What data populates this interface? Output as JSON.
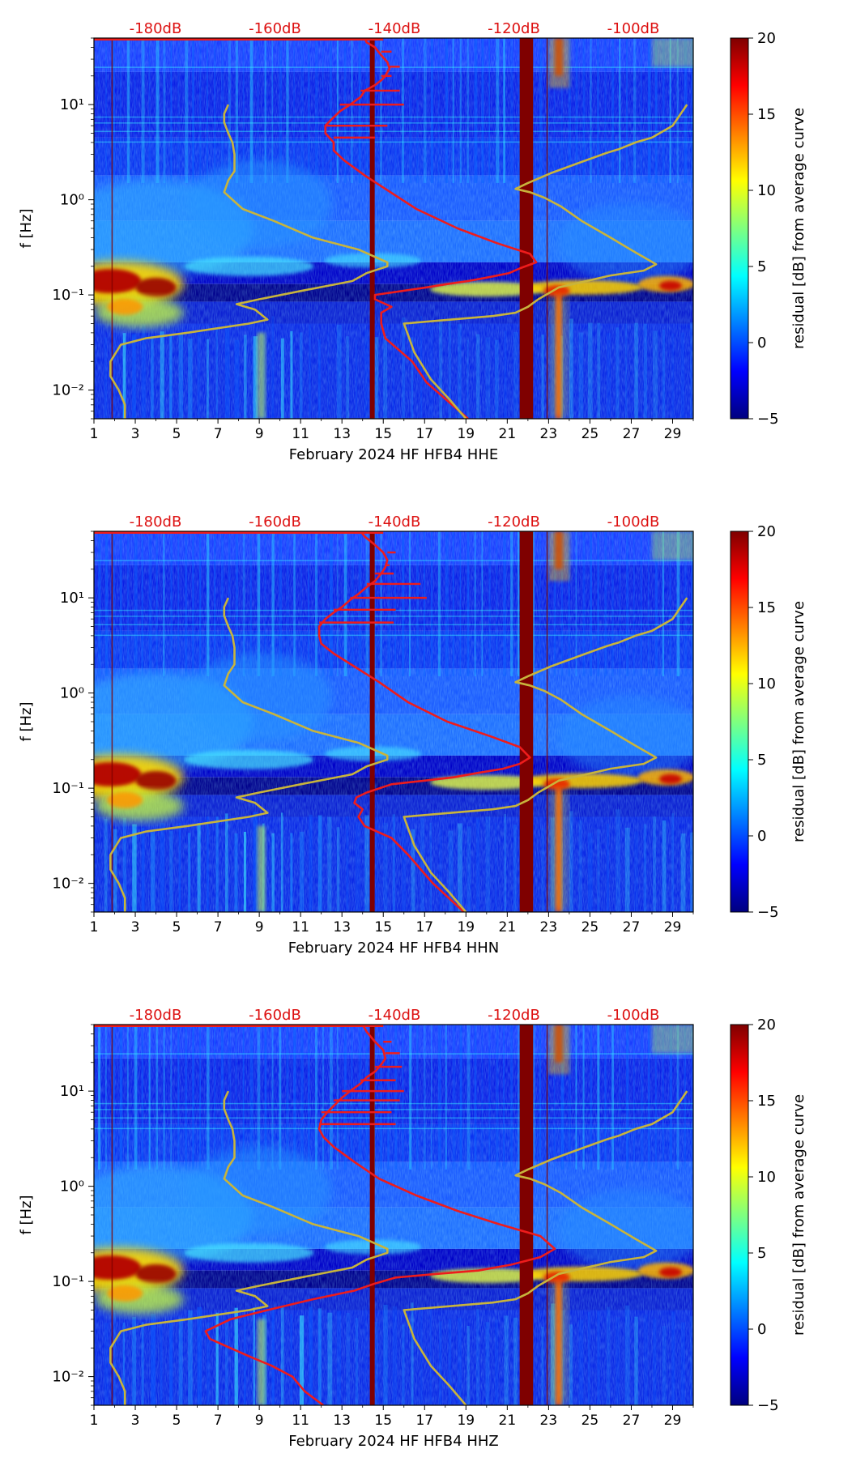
{
  "colorbar": {
    "label": "residual [dB] from average curve",
    "ticks": [
      "20",
      "15",
      "10",
      "5",
      "0",
      "−5"
    ],
    "stops": [
      "#00007f",
      "#0000ff",
      "#007fff",
      "#00ffff",
      "#7fff7f",
      "#ffff00",
      "#ff7f00",
      "#ff0000",
      "#7f0000"
    ],
    "range": [
      -5,
      20
    ]
  },
  "colors": {
    "red_curve": "#ee1c1c",
    "model_curve": "#c8b43c",
    "db_label": "#dd1111",
    "band": "#7f0000"
  },
  "chart_data": [
    {
      "type": "heatmap",
      "xlabel": "February 2024 HF HFB4  HHE",
      "ylabel": "f [Hz]",
      "x_ticks": [
        "1",
        "3",
        "5",
        "7",
        "9",
        "11",
        "13",
        "15",
        "17",
        "19",
        "21",
        "23",
        "25",
        "27",
        "29"
      ],
      "y_ticks": [
        "10⁻²",
        "10⁻¹",
        "10⁰",
        "10¹"
      ],
      "top_ticks": [
        "-180dB",
        "-160dB",
        "-140dB",
        "-120dB",
        "-100dB"
      ],
      "xlim": [
        1,
        30
      ],
      "ylim": [
        0.005,
        50
      ],
      "series": [
        {
          "name": "red",
          "x": [
            19.1,
            17.1,
            16.4,
            15.1,
            14.9,
            14.9,
            15.4,
            14.6,
            14.6,
            15.9,
            17.1,
            18.1,
            19.1,
            20.2,
            21.1,
            21.6,
            22.4,
            22.1,
            20.5,
            18.6,
            16.6,
            15.1,
            14.1,
            13.1,
            12.6,
            12.6,
            12.2,
            12.2,
            12.5,
            12.9,
            13.4,
            13.9,
            14.1,
            14.6,
            14.9,
            15.1,
            15.3,
            15.2,
            14.9,
            14.6,
            14.2,
            14.1
          ],
          "y": [
            0.005,
            0.012,
            0.02,
            0.035,
            0.05,
            0.065,
            0.075,
            0.09,
            0.1,
            0.11,
            0.12,
            0.13,
            0.14,
            0.155,
            0.17,
            0.19,
            0.22,
            0.27,
            0.35,
            0.5,
            0.8,
            1.3,
            1.8,
            2.6,
            3.3,
            4.0,
            5.0,
            6.0,
            7.0,
            8.5,
            10,
            12,
            14,
            16,
            18,
            20,
            24,
            28,
            33,
            40,
            45,
            50
          ]
        },
        {
          "name": "model",
          "x": [
            2.5,
            2.5,
            2.2,
            1.8,
            1.8,
            2.3,
            3.5,
            5.5,
            8.5,
            9.4,
            8.8,
            7.9,
            9.0,
            11,
            13.5,
            14.2,
            15.2,
            15.2,
            13.8,
            11.6,
            9.7,
            8.2,
            7.3,
            7.5,
            7.8,
            7.8,
            7.7,
            7.5,
            7.3,
            7.3,
            7.5
          ],
          "y": [
            0.005,
            0.007,
            0.01,
            0.014,
            0.02,
            0.03,
            0.035,
            0.04,
            0.05,
            0.055,
            0.07,
            0.08,
            0.09,
            0.11,
            0.14,
            0.17,
            0.2,
            0.22,
            0.3,
            0.4,
            0.6,
            0.8,
            1.2,
            1.6,
            2.0,
            3.0,
            4.0,
            5.0,
            6.5,
            8.0,
            10
          ]
        },
        {
          "name": "model",
          "x": [
            19.0,
            18.2,
            17.3,
            16.5,
            16.0,
            20.3,
            21.4,
            22.0,
            22.5,
            23.5,
            26.0,
            27.6,
            28.2,
            27.2,
            26.0,
            24.6,
            23.6,
            22.8,
            22.1,
            21.4,
            22.0,
            23.1,
            24.6,
            25.8,
            26.4,
            27.2,
            28.0,
            29.0,
            29.7
          ],
          "y": [
            0.005,
            0.008,
            0.013,
            0.025,
            0.05,
            0.06,
            0.065,
            0.075,
            0.09,
            0.12,
            0.16,
            0.18,
            0.21,
            0.28,
            0.4,
            0.6,
            0.85,
            1.05,
            1.2,
            1.3,
            1.5,
            1.9,
            2.5,
            3.1,
            3.4,
            4.0,
            4.5,
            6.0,
            10
          ]
        }
      ]
    },
    {
      "type": "heatmap",
      "xlabel": "February 2024 HF HFB4  HHN",
      "ylabel": "f [Hz]",
      "x_ticks": [
        "1",
        "3",
        "5",
        "7",
        "9",
        "11",
        "13",
        "15",
        "17",
        "19",
        "21",
        "23",
        "25",
        "27",
        "29"
      ],
      "y_ticks": [
        "10⁻²",
        "10⁻¹",
        "10⁰",
        "10¹"
      ],
      "top_ticks": [
        "-180dB",
        "-160dB",
        "-140dB",
        "-120dB",
        "-100dB"
      ],
      "xlim": [
        1,
        30
      ],
      "ylim": [
        0.005,
        50
      ],
      "series": [
        {
          "name": "red",
          "x": [
            18.9,
            17.4,
            16.2,
            15.4,
            14.1,
            13.8,
            14.0,
            13.6,
            13.7,
            14.2,
            15.4,
            17.0,
            18.4,
            19.6,
            20.8,
            21.6,
            22.1,
            21.6,
            20.2,
            18.1,
            16.2,
            14.8,
            13.6,
            12.6,
            12.0,
            11.9,
            11.9,
            12.2,
            12.6,
            13.0,
            13.4,
            13.8,
            14.2,
            14.6,
            14.9,
            15.1,
            15.2,
            15.0,
            14.6,
            14.1,
            13.9
          ],
          "y": [
            0.005,
            0.01,
            0.02,
            0.03,
            0.04,
            0.05,
            0.06,
            0.07,
            0.08,
            0.09,
            0.11,
            0.12,
            0.13,
            0.145,
            0.16,
            0.18,
            0.21,
            0.27,
            0.35,
            0.5,
            0.8,
            1.3,
            1.9,
            2.6,
            3.3,
            4.0,
            5.0,
            6.0,
            7.0,
            8.0,
            9.5,
            11,
            13,
            15,
            18,
            21,
            25,
            30,
            36,
            44,
            50
          ]
        },
        {
          "name": "model",
          "x": [
            2.5,
            2.5,
            2.2,
            1.8,
            1.8,
            2.3,
            3.5,
            5.5,
            8.5,
            9.4,
            8.8,
            7.9,
            9.0,
            11,
            13.5,
            14.2,
            15.2,
            15.2,
            13.8,
            11.6,
            9.7,
            8.2,
            7.3,
            7.5,
            7.8,
            7.8,
            7.7,
            7.5,
            7.3,
            7.3,
            7.5
          ],
          "y": [
            0.005,
            0.007,
            0.01,
            0.014,
            0.02,
            0.03,
            0.035,
            0.04,
            0.05,
            0.055,
            0.07,
            0.08,
            0.09,
            0.11,
            0.14,
            0.17,
            0.2,
            0.22,
            0.3,
            0.4,
            0.6,
            0.8,
            1.2,
            1.6,
            2.0,
            3.0,
            4.0,
            5.0,
            6.5,
            8.0,
            10
          ]
        },
        {
          "name": "model",
          "x": [
            19.0,
            18.2,
            17.3,
            16.5,
            16.0,
            20.3,
            21.4,
            22.0,
            22.5,
            23.5,
            26.0,
            27.6,
            28.2,
            27.2,
            26.0,
            24.6,
            23.6,
            22.8,
            22.1,
            21.4,
            22.0,
            23.1,
            24.6,
            25.8,
            26.4,
            27.2,
            28.0,
            29.0,
            29.7
          ],
          "y": [
            0.005,
            0.008,
            0.013,
            0.025,
            0.05,
            0.06,
            0.065,
            0.075,
            0.09,
            0.12,
            0.16,
            0.18,
            0.21,
            0.28,
            0.4,
            0.6,
            0.85,
            1.05,
            1.2,
            1.3,
            1.5,
            1.9,
            2.5,
            3.1,
            3.4,
            4.0,
            4.5,
            6.0,
            10
          ]
        }
      ]
    },
    {
      "type": "heatmap",
      "xlabel": "February 2024 HF HFB4  HHZ",
      "ylabel": "f [Hz]",
      "x_ticks": [
        "1",
        "3",
        "5",
        "7",
        "9",
        "11",
        "13",
        "15",
        "17",
        "19",
        "21",
        "23",
        "25",
        "27",
        "29"
      ],
      "y_ticks": [
        "10⁻²",
        "10⁻¹",
        "10⁰",
        "10¹"
      ],
      "top_ticks": [
        "-180dB",
        "-160dB",
        "-140dB",
        "-120dB",
        "-100dB"
      ],
      "xlim": [
        1,
        30
      ],
      "ylim": [
        0.005,
        50
      ],
      "series": [
        {
          "name": "red",
          "x": [
            12.1,
            11.2,
            10.6,
            9.6,
            8.6,
            7.6,
            6.6,
            6.4,
            7.6,
            9.4,
            11.6,
            13.6,
            14.6,
            15.6,
            17.6,
            19.6,
            21.2,
            22.6,
            23.3,
            22.6,
            20.6,
            18.6,
            16.6,
            14.8,
            13.6,
            12.6,
            12.1,
            11.9,
            12.0,
            12.3,
            12.6,
            13.0,
            13.4,
            13.9,
            14.2,
            14.6,
            14.9,
            15.1,
            15.0,
            14.6,
            14.2,
            14.0
          ],
          "y": [
            0.005,
            0.007,
            0.01,
            0.013,
            0.016,
            0.02,
            0.025,
            0.03,
            0.04,
            0.05,
            0.065,
            0.08,
            0.095,
            0.11,
            0.12,
            0.13,
            0.15,
            0.18,
            0.22,
            0.3,
            0.4,
            0.55,
            0.8,
            1.2,
            1.8,
            2.6,
            3.3,
            4.0,
            5.0,
            6.0,
            7.0,
            8.5,
            10,
            12,
            14,
            16,
            19,
            22,
            27,
            33,
            42,
            50
          ]
        },
        {
          "name": "model",
          "x": [
            2.5,
            2.5,
            2.2,
            1.8,
            1.8,
            2.3,
            3.5,
            5.5,
            8.5,
            9.4,
            8.8,
            7.9,
            9.0,
            11,
            13.5,
            14.2,
            15.2,
            15.2,
            13.8,
            11.6,
            9.7,
            8.2,
            7.3,
            7.5,
            7.8,
            7.8,
            7.7,
            7.5,
            7.3,
            7.3,
            7.5
          ],
          "y": [
            0.005,
            0.007,
            0.01,
            0.014,
            0.02,
            0.03,
            0.035,
            0.04,
            0.05,
            0.055,
            0.07,
            0.08,
            0.09,
            0.11,
            0.14,
            0.17,
            0.2,
            0.22,
            0.3,
            0.4,
            0.6,
            0.8,
            1.2,
            1.6,
            2.0,
            3.0,
            4.0,
            5.0,
            6.5,
            8.0,
            10
          ]
        },
        {
          "name": "model",
          "x": [
            19.0,
            18.2,
            17.3,
            16.5,
            16.0,
            20.3,
            21.4,
            22.0,
            22.5,
            23.5,
            26.0,
            27.6,
            28.2,
            27.2,
            26.0,
            24.6,
            23.6,
            22.8,
            22.1,
            21.4,
            22.0,
            23.1,
            24.6,
            25.8,
            26.4,
            27.2,
            28.0,
            29.0,
            29.7
          ],
          "y": [
            0.005,
            0.008,
            0.013,
            0.025,
            0.05,
            0.06,
            0.065,
            0.075,
            0.09,
            0.12,
            0.16,
            0.18,
            0.21,
            0.28,
            0.4,
            0.6,
            0.85,
            1.05,
            1.2,
            1.3,
            1.5,
            1.9,
            2.5,
            3.1,
            3.4,
            4.0,
            4.5,
            6.0,
            10
          ]
        }
      ]
    }
  ]
}
